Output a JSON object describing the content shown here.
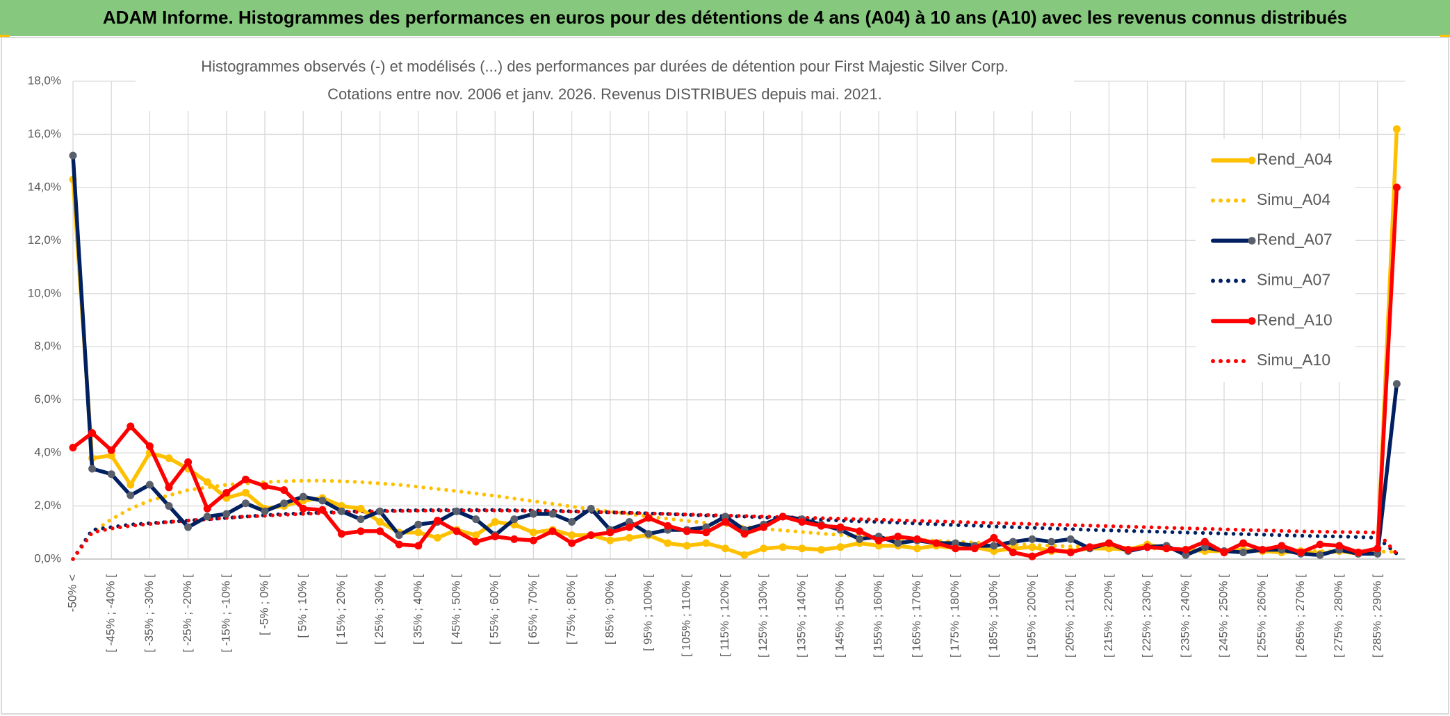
{
  "chart_data": {
    "type": "line",
    "title": "ADAM Informe. Histogrammes des performances en euros pour des détentions de 4 ans (A04) à 10 ans (A10) avec les revenus connus distribués",
    "subtitle": [
      "Histogrammes observés (-) et modélisés (...) des performances par durées de détention pour First Majestic Silver Corp.",
      "Cotations entre nov. 2006 et janv. 2026. Revenus DISTRIBUES depuis mai. 2021."
    ],
    "categories": [
      "-50% <",
      null,
      "[ -45% ; -40% [",
      null,
      "[ -35% ; -30% [",
      null,
      "[ -25% ; -20% [",
      null,
      "[ -15% ; -10% [",
      null,
      "[ -5% ; 0% [",
      null,
      "[ 5% ; 10% [",
      null,
      "[ 15% ; 20% [",
      null,
      "[ 25% ; 30% [",
      null,
      "[ 35% ; 40% [",
      null,
      "[ 45% ; 50% [",
      null,
      "[ 55% ; 60% [",
      null,
      "[ 65% ; 70% [",
      null,
      "[ 75% ; 80% [",
      null,
      "[ 85% ; 90% [",
      null,
      "[ 95% ; 100% [",
      null,
      "[ 105% ; 110% [",
      null,
      "[ 115% ; 120% [",
      null,
      "[ 125% ; 130% [",
      null,
      "[ 135% ; 140% [",
      null,
      "[ 145% ; 150% [",
      null,
      "[ 155% ; 160% [",
      null,
      "[ 165% ; 170% [",
      null,
      "[ 175% ; 180% [",
      null,
      "[ 185% ; 190% [",
      null,
      "[ 195% ; 200% [",
      null,
      "[ 205% ; 210% [",
      null,
      "[ 215% ; 220% [",
      null,
      "[ 225% ; 230% [",
      null,
      "[ 235% ; 240% [",
      null,
      "[ 245% ; 250% [",
      null,
      "[ 255% ; 260% [",
      null,
      "[ 265% ; 270% [",
      null,
      "[ 275% ; 280% [",
      null,
      "[ 285% ; 290% [",
      null
    ],
    "series": [
      {
        "name": "Rend_A04",
        "color": "#FFC000",
        "line_style": "solid",
        "markers": true,
        "values": [
          14.3,
          3.8,
          3.9,
          2.8,
          4.0,
          3.8,
          3.4,
          2.9,
          2.3,
          2.5,
          1.9,
          2.0,
          2.2,
          2.3,
          2.0,
          1.9,
          1.4,
          1.0,
          1.0,
          0.8,
          1.1,
          0.9,
          1.4,
          1.3,
          1.0,
          1.1,
          0.9,
          0.9,
          0.7,
          0.8,
          0.9,
          0.6,
          0.5,
          0.6,
          0.4,
          0.15,
          0.4,
          0.45,
          0.4,
          0.35,
          0.45,
          0.6,
          0.5,
          0.5,
          0.4,
          0.5,
          0.4,
          0.45,
          0.3,
          0.4,
          0.45,
          0.3,
          0.3,
          0.4,
          0.4,
          0.35,
          0.55,
          0.4,
          0.35,
          0.3,
          0.3,
          0.35,
          0.3,
          0.25,
          0.3,
          0.2,
          0.3,
          0.2,
          0.3,
          16.2
        ]
      },
      {
        "name": "Simu_A04",
        "color": "#FFC000",
        "line_style": "dotted",
        "markers": false,
        "values": [
          0,
          1.0,
          1.5,
          1.9,
          2.2,
          2.4,
          2.6,
          2.7,
          2.8,
          2.85,
          2.9,
          2.93,
          2.95,
          2.95,
          2.93,
          2.9,
          2.85,
          2.8,
          2.72,
          2.64,
          2.56,
          2.47,
          2.38,
          2.28,
          2.18,
          2.08,
          1.98,
          1.88,
          1.79,
          1.7,
          1.6,
          1.52,
          1.44,
          1.36,
          1.28,
          1.21,
          1.14,
          1.08,
          1.02,
          0.96,
          0.91,
          0.86,
          0.81,
          0.77,
          0.73,
          0.69,
          0.65,
          0.62,
          0.59,
          0.56,
          0.53,
          0.5,
          0.48,
          0.46,
          0.44,
          0.42,
          0.4,
          0.39,
          0.37,
          0.36,
          0.35,
          0.34,
          0.33,
          0.32,
          0.31,
          0.3,
          0.29,
          0.28,
          0.28,
          0.27
        ]
      },
      {
        "name": "Rend_A07",
        "color": "#002060",
        "marker_color": "#59606C",
        "line_style": "solid",
        "markers": true,
        "values": [
          15.2,
          3.4,
          3.2,
          2.4,
          2.8,
          2.0,
          1.2,
          1.6,
          1.7,
          2.1,
          1.8,
          2.1,
          2.35,
          2.2,
          1.8,
          1.5,
          1.8,
          0.9,
          1.3,
          1.4,
          1.8,
          1.5,
          0.9,
          1.5,
          1.7,
          1.7,
          1.4,
          1.9,
          1.1,
          1.4,
          0.95,
          1.1,
          1.1,
          1.2,
          1.6,
          1.1,
          1.3,
          1.6,
          1.5,
          1.3,
          1.1,
          0.75,
          0.85,
          0.6,
          0.7,
          0.6,
          0.6,
          0.5,
          0.5,
          0.65,
          0.75,
          0.65,
          0.75,
          0.4,
          0.6,
          0.3,
          0.45,
          0.5,
          0.15,
          0.45,
          0.3,
          0.25,
          0.35,
          0.35,
          0.2,
          0.15,
          0.35,
          0.2,
          0.2,
          6.6
        ]
      },
      {
        "name": "Simu_A07",
        "color": "#002060",
        "line_style": "dotted",
        "markers": false,
        "values": [
          0,
          1.1,
          1.2,
          1.3,
          1.35,
          1.4,
          1.45,
          1.5,
          1.55,
          1.6,
          1.65,
          1.7,
          1.72,
          1.75,
          1.78,
          1.8,
          1.82,
          1.83,
          1.84,
          1.85,
          1.85,
          1.85,
          1.85,
          1.84,
          1.83,
          1.82,
          1.8,
          1.78,
          1.76,
          1.74,
          1.72,
          1.7,
          1.67,
          1.64,
          1.62,
          1.6,
          1.57,
          1.54,
          1.51,
          1.48,
          1.45,
          1.42,
          1.4,
          1.37,
          1.34,
          1.31,
          1.28,
          1.26,
          1.23,
          1.2,
          1.18,
          1.15,
          1.13,
          1.1,
          1.08,
          1.06,
          1.04,
          1.02,
          1.0,
          0.98,
          0.96,
          0.94,
          0.92,
          0.9,
          0.88,
          0.86,
          0.85,
          0.83,
          0.8,
          0.2
        ]
      },
      {
        "name": "Rend_A10",
        "color": "#FF0000",
        "line_style": "solid",
        "markers": true,
        "values": [
          4.2,
          4.75,
          4.1,
          5.0,
          4.25,
          2.7,
          3.65,
          1.9,
          2.5,
          3.0,
          2.75,
          2.6,
          1.9,
          1.85,
          0.95,
          1.05,
          1.05,
          0.55,
          0.5,
          1.45,
          1.05,
          0.65,
          0.85,
          0.75,
          0.7,
          1.05,
          0.6,
          0.9,
          1.0,
          1.2,
          1.55,
          1.25,
          1.05,
          1.0,
          1.4,
          0.95,
          1.2,
          1.6,
          1.4,
          1.25,
          1.2,
          1.05,
          0.7,
          0.85,
          0.75,
          0.6,
          0.4,
          0.4,
          0.8,
          0.25,
          0.1,
          0.35,
          0.25,
          0.45,
          0.6,
          0.35,
          0.45,
          0.4,
          0.35,
          0.65,
          0.25,
          0.6,
          0.35,
          0.5,
          0.25,
          0.55,
          0.5,
          0.25,
          0.4,
          14.0
        ]
      },
      {
        "name": "Simu_A10",
        "color": "#FF0000",
        "line_style": "dotted",
        "markers": false,
        "values": [
          0,
          1.0,
          1.15,
          1.25,
          1.32,
          1.4,
          1.45,
          1.5,
          1.55,
          1.6,
          1.63,
          1.67,
          1.7,
          1.73,
          1.76,
          1.78,
          1.8,
          1.81,
          1.82,
          1.83,
          1.83,
          1.83,
          1.83,
          1.82,
          1.81,
          1.8,
          1.79,
          1.78,
          1.76,
          1.74,
          1.72,
          1.7,
          1.68,
          1.66,
          1.64,
          1.62,
          1.6,
          1.58,
          1.56,
          1.54,
          1.52,
          1.5,
          1.48,
          1.46,
          1.44,
          1.42,
          1.4,
          1.38,
          1.36,
          1.34,
          1.32,
          1.3,
          1.28,
          1.26,
          1.24,
          1.22,
          1.2,
          1.18,
          1.16,
          1.14,
          1.12,
          1.1,
          1.08,
          1.06,
          1.04,
          1.03,
          1.02,
          1.01,
          1.0,
          0.2
        ]
      }
    ],
    "ylim": [
      0,
      18
    ],
    "yticks": [
      {
        "value": 0,
        "label": "0,0%"
      },
      {
        "value": 2,
        "label": "2,0%"
      },
      {
        "value": 4,
        "label": "4,0%"
      },
      {
        "value": 6,
        "label": "6,0%"
      },
      {
        "value": 8,
        "label": "8,0%"
      },
      {
        "value": 10,
        "label": "10,0%"
      },
      {
        "value": 12,
        "label": "12,0%"
      },
      {
        "value": 14,
        "label": "14,0%"
      },
      {
        "value": 16,
        "label": "16,0%"
      },
      {
        "value": 18,
        "label": "18,0%"
      }
    ],
    "grid": true,
    "legend": "right"
  }
}
